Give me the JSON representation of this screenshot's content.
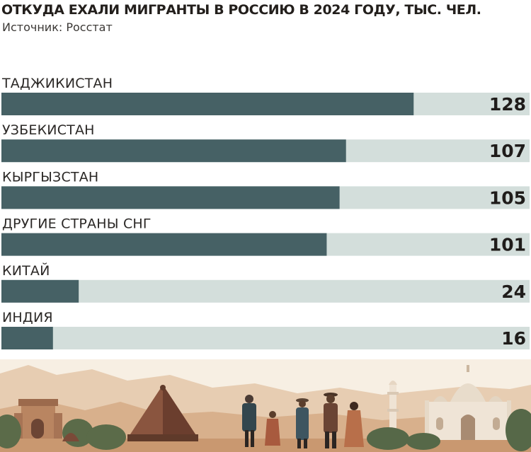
{
  "chart_data": {
    "type": "bar",
    "orientation": "horizontal",
    "title": "ОТКУДА ЕХАЛИ МИГРАНТЫ В РОССИЮ В 2024 ГОДУ, ТЫС. ЧЕЛ.",
    "subtitle": "Источник: Росстат",
    "categories": [
      "ТАДЖИКИСТАН",
      "УЗБЕКИСТАН",
      "КЫРГЫЗСТАН",
      "ДРУГИЕ СТРАНЫ СНГ",
      "КИТАЙ",
      "ИНДИЯ"
    ],
    "values": [
      128,
      107,
      105,
      101,
      24,
      16
    ],
    "xlim": [
      0,
      164
    ],
    "grid": false,
    "colors": {
      "bar": "#466165",
      "track": "#d3dedb",
      "text": "#231f1c"
    }
  },
  "illustration": {
    "icon": "travel-landmarks-illustration"
  }
}
